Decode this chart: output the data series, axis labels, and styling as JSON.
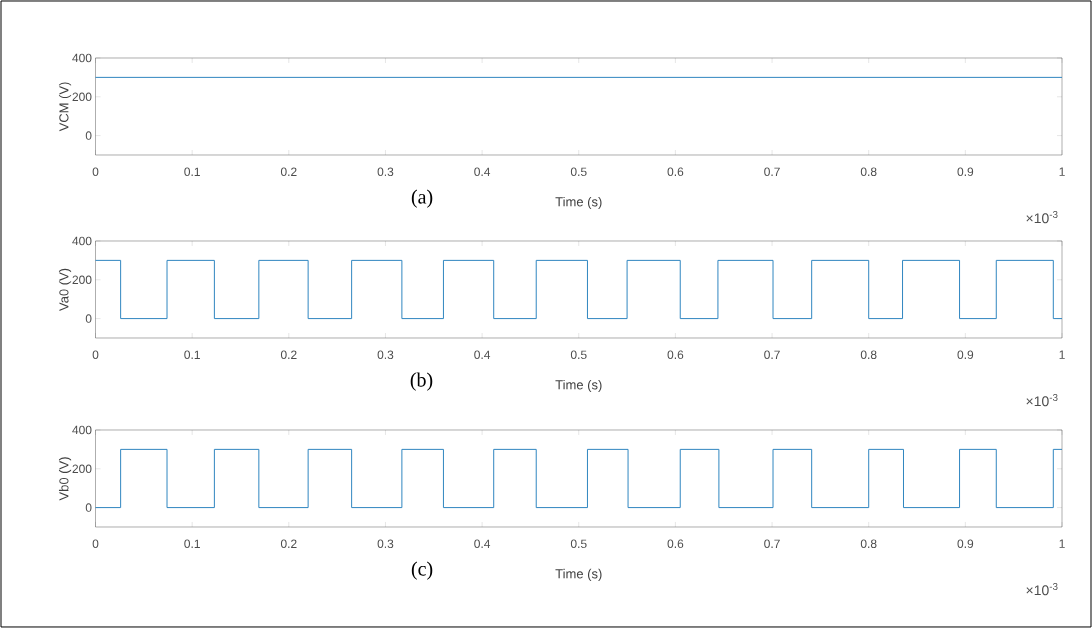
{
  "chart_data": [
    {
      "type": "step",
      "ylabel": "VCM (V)",
      "xlabel": "Time (s)",
      "annotations": [
        "(a)",
        "×10$^{-3}$"
      ],
      "color": "#2f86c0",
      "x": [
        0,
        1
      ],
      "values": [
        300,
        300
      ],
      "xlim": [
        0,
        1
      ],
      "ylim": [
        -100,
        400
      ],
      "yticks": [
        0,
        200,
        400
      ],
      "xticks": [
        0,
        0.1,
        0.2,
        0.3,
        0.4,
        0.5,
        0.6,
        0.7,
        0.8,
        0.9,
        1
      ]
    },
    {
      "type": "step",
      "ylabel": "Va0 (V)",
      "xlabel": "Time (s)",
      "annotations": [
        "(b)",
        "×10$^{-3}$"
      ],
      "color": "#2f86c0",
      "x": [
        0,
        0.026,
        0.074,
        0.123,
        0.169,
        0.22,
        0.265,
        0.317,
        0.36,
        0.412,
        0.456,
        0.509,
        0.55,
        0.605,
        0.644,
        0.701,
        0.741,
        0.8,
        0.835,
        0.894,
        0.932,
        0.991,
        1
      ],
      "values": [
        300,
        0,
        300,
        0,
        300,
        0,
        300,
        0,
        300,
        0,
        300,
        0,
        300,
        0,
        300,
        0,
        300,
        0,
        300,
        0,
        300,
        0,
        0
      ],
      "xlim": [
        0,
        1
      ],
      "ylim": [
        -100,
        400
      ],
      "yticks": [
        0,
        200,
        400
      ],
      "xticks": [
        0,
        0.1,
        0.2,
        0.3,
        0.4,
        0.5,
        0.6,
        0.7,
        0.8,
        0.9,
        1
      ]
    },
    {
      "type": "step",
      "ylabel": "Vb0 (V)",
      "xlabel": "Time (s)",
      "annotations": [
        "(c)",
        "×10$^{-3}$"
      ],
      "color": "#2f86c0",
      "x": [
        0,
        0.026,
        0.074,
        0.123,
        0.169,
        0.22,
        0.265,
        0.317,
        0.36,
        0.412,
        0.456,
        0.509,
        0.551,
        0.605,
        0.645,
        0.701,
        0.741,
        0.8,
        0.836,
        0.894,
        0.932,
        0.991,
        1
      ],
      "values": [
        0,
        300,
        0,
        300,
        0,
        300,
        0,
        300,
        0,
        300,
        0,
        300,
        0,
        300,
        0,
        300,
        0,
        300,
        0,
        300,
        0,
        300,
        300
      ],
      "xlim": [
        0,
        1
      ],
      "ylim": [
        -100,
        400
      ],
      "yticks": [
        0,
        200,
        400
      ],
      "xticks": [
        0,
        0.1,
        0.2,
        0.3,
        0.4,
        0.5,
        0.6,
        0.7,
        0.8,
        0.9,
        1
      ]
    }
  ]
}
